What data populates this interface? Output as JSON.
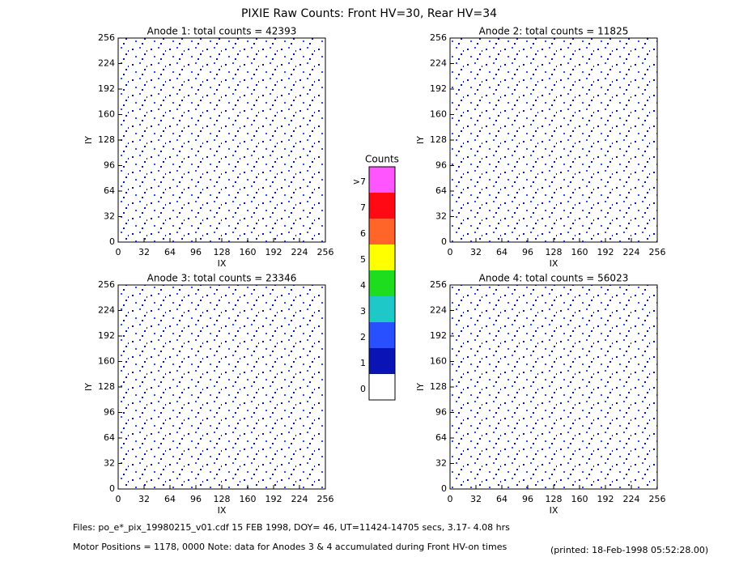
{
  "title": "PIXIE Raw Counts:  Front HV=30, Rear HV=34",
  "panels": [
    {
      "title": "Anode 1: total counts = 42393",
      "xlabel": "IX",
      "ylabel": "IY",
      "xlim": [
        0,
        256
      ],
      "ylim": [
        0,
        256
      ],
      "xticks": [
        0,
        32,
        64,
        96,
        128,
        160,
        192,
        224,
        256
      ],
      "yticks": [
        0,
        32,
        64,
        96,
        128,
        160,
        192,
        224,
        256
      ]
    },
    {
      "title": "Anode 2: total counts = 11825",
      "xlabel": "IX",
      "ylabel": "IY",
      "xlim": [
        0,
        256
      ],
      "ylim": [
        0,
        256
      ],
      "xticks": [
        0,
        32,
        64,
        96,
        128,
        160,
        192,
        224,
        256
      ],
      "yticks": [
        0,
        32,
        64,
        96,
        128,
        160,
        192,
        224,
        256
      ]
    },
    {
      "title": "Anode 3: total counts = 23346",
      "xlabel": "IX",
      "ylabel": "IY",
      "xlim": [
        0,
        256
      ],
      "ylim": [
        0,
        256
      ],
      "xticks": [
        0,
        32,
        64,
        96,
        128,
        160,
        192,
        224,
        256
      ],
      "yticks": [
        0,
        32,
        64,
        96,
        128,
        160,
        192,
        224,
        256
      ]
    },
    {
      "title": "Anode 4: total counts = 56023",
      "xlabel": "IX",
      "ylabel": "IY",
      "xlim": [
        0,
        256
      ],
      "ylim": [
        0,
        256
      ],
      "xticks": [
        0,
        32,
        64,
        96,
        128,
        160,
        192,
        224,
        256
      ],
      "yticks": [
        0,
        32,
        64,
        96,
        128,
        160,
        192,
        224,
        256
      ]
    }
  ],
  "colorbar": {
    "title": "Counts",
    "labels": [
      "0",
      "1",
      "2",
      "3",
      "4",
      "5",
      "6",
      "7",
      ">7"
    ],
    "colors": [
      "#ffffff",
      "#0a14b4",
      "#2850ff",
      "#1ec8c8",
      "#1edc1e",
      "#ffff00",
      "#ff6428",
      "#ff0a14",
      "#ff55ff"
    ]
  },
  "footer": {
    "line1": "Files: po_e*_pix_19980215_v01.cdf     15 FEB 1998, DOY= 46, UT=11424-14705 secs,  3.17- 4.08 hrs",
    "line2": "Motor Positions = 1178, 0000    Note: data for Anodes 3 & 4 accumulated during Front HV-on times",
    "printed": "(printed: 18-Feb-1998 05:52:28.00)"
  }
}
